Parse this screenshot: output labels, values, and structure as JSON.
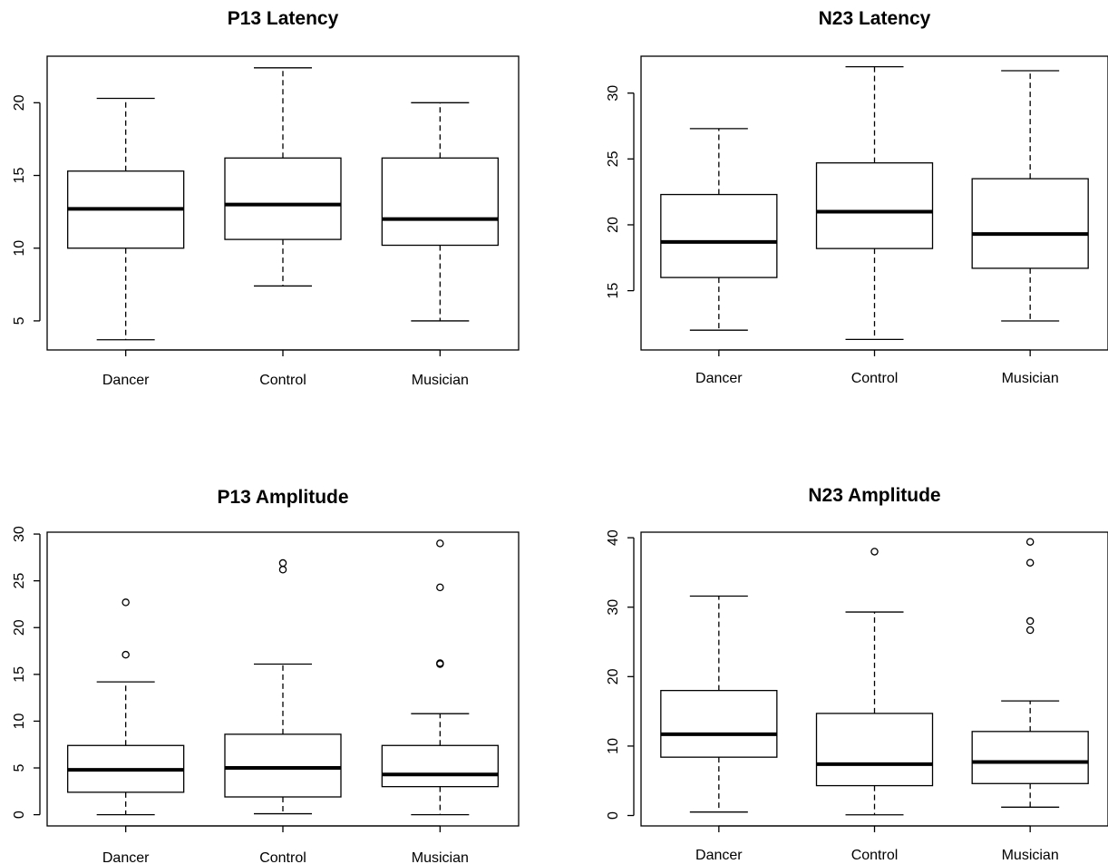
{
  "chart_data": [
    {
      "type": "boxplot",
      "title": "P13 Latency",
      "categories": [
        "Dancer",
        "Control",
        "Musician"
      ],
      "yticks": [
        5,
        10,
        15,
        20
      ],
      "ylim": [
        3.0,
        23.2
      ],
      "boxes": [
        {
          "min": 3.7,
          "q1": 10.0,
          "median": 12.7,
          "q3": 15.3,
          "max": 20.3,
          "outliers": []
        },
        {
          "min": 7.4,
          "q1": 10.6,
          "median": 13.0,
          "q3": 16.2,
          "max": 22.4,
          "outliers": []
        },
        {
          "min": 5.0,
          "q1": 10.2,
          "median": 12.0,
          "q3": 16.2,
          "max": 20.0,
          "outliers": []
        }
      ]
    },
    {
      "type": "boxplot",
      "title": "N23 Latency",
      "categories": [
        "Dancer",
        "Control",
        "Musician"
      ],
      "yticks": [
        15,
        20,
        25,
        30
      ],
      "ylim": [
        10.5,
        32.8
      ],
      "boxes": [
        {
          "min": 12.0,
          "q1": 16.0,
          "median": 18.7,
          "q3": 22.3,
          "max": 27.3,
          "outliers": []
        },
        {
          "min": 11.3,
          "q1": 18.2,
          "median": 21.0,
          "q3": 24.7,
          "max": 32.0,
          "outliers": []
        },
        {
          "min": 12.7,
          "q1": 16.7,
          "median": 19.3,
          "q3": 23.5,
          "max": 31.7,
          "outliers": []
        }
      ]
    },
    {
      "type": "boxplot",
      "title": "P13 Amplitude",
      "categories": [
        "Dancer",
        "Control",
        "Musician"
      ],
      "yticks": [
        0,
        5,
        10,
        15,
        20,
        25,
        30
      ],
      "ylim": [
        -1.2,
        30.2
      ],
      "boxes": [
        {
          "min": 0.0,
          "q1": 2.4,
          "median": 4.8,
          "q3": 7.4,
          "max": 14.2,
          "outliers": [
            17.1,
            22.7
          ]
        },
        {
          "min": 0.1,
          "q1": 1.9,
          "median": 5.0,
          "q3": 8.6,
          "max": 16.1,
          "outliers": [
            26.2,
            26.9
          ]
        },
        {
          "min": 0.0,
          "q1": 3.0,
          "median": 4.3,
          "q3": 7.4,
          "max": 10.8,
          "outliers": [
            16.1,
            16.2,
            24.3,
            29.0
          ]
        }
      ]
    },
    {
      "type": "boxplot",
      "title": "N23 Amplitude",
      "categories": [
        "Dancer",
        "Control",
        "Musician"
      ],
      "yticks": [
        0,
        10,
        20,
        30,
        40
      ],
      "ylim": [
        -1.5,
        40.8
      ],
      "boxes": [
        {
          "min": 0.5,
          "q1": 8.4,
          "median": 11.7,
          "q3": 18.0,
          "max": 31.6,
          "outliers": []
        },
        {
          "min": 0.1,
          "q1": 4.3,
          "median": 7.4,
          "q3": 14.7,
          "max": 29.3,
          "outliers": [
            38.0
          ]
        },
        {
          "min": 1.2,
          "q1": 4.6,
          "median": 7.7,
          "q3": 12.1,
          "max": 16.5,
          "outliers": [
            26.7,
            28.0,
            36.4,
            39.4
          ]
        }
      ]
    }
  ]
}
